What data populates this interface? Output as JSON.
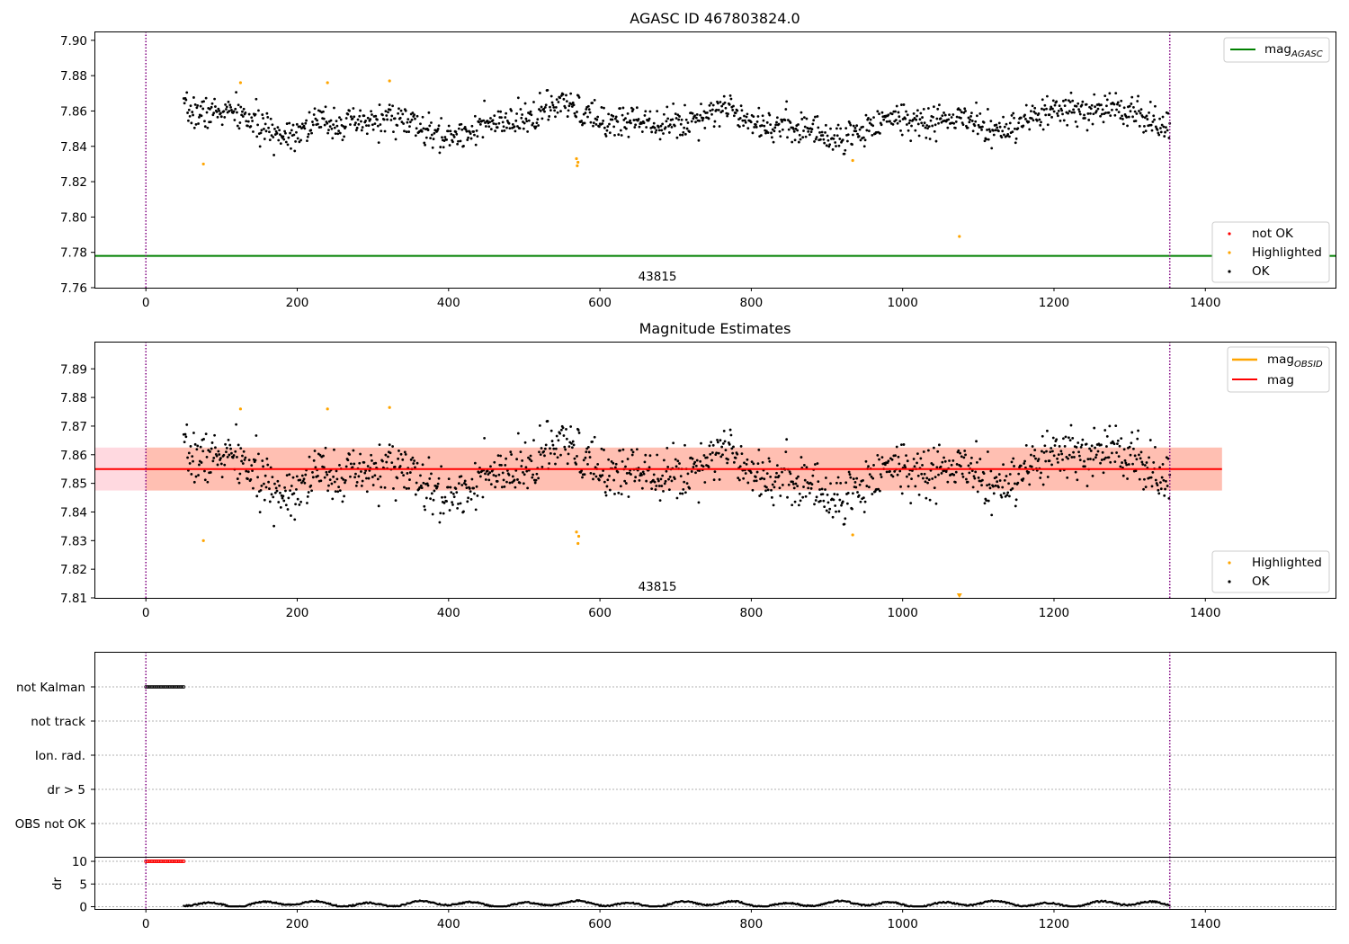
{
  "chart_data": [
    {
      "type": "scatter",
      "title": "AGASC ID 467803824.0",
      "xlim": [
        -68,
        1572
      ],
      "ylim": [
        7.76,
        7.905
      ],
      "xticks": [
        "0",
        "200",
        "400",
        "600",
        "800",
        "1000",
        "1200",
        "1400"
      ],
      "xtick_values": [
        0,
        200,
        400,
        600,
        800,
        1000,
        1200,
        1400
      ],
      "yticks": [
        "7.76",
        "7.78",
        "7.80",
        "7.82",
        "7.84",
        "7.86",
        "7.88",
        "7.90"
      ],
      "ytick_values": [
        7.76,
        7.78,
        7.8,
        7.82,
        7.84,
        7.86,
        7.88,
        7.9
      ],
      "obsid_boundaries": [
        0,
        1353
      ],
      "obsid_label": "43815",
      "obsid_label_x": 676,
      "mag_agasc": 7.778,
      "ok_series": {
        "x_start": 50,
        "x_end": 1353,
        "mean": 7.854,
        "amplitude": 0.008,
        "noise": 0.006,
        "count": 1280
      },
      "highlighted": [
        {
          "x": 76,
          "y": 7.83
        },
        {
          "x": 125,
          "y": 7.876
        },
        {
          "x": 240,
          "y": 7.876
        },
        {
          "x": 322,
          "y": 7.877
        },
        {
          "x": 569,
          "y": 7.833
        },
        {
          "x": 570,
          "y": 7.829
        },
        {
          "x": 571,
          "y": 7.831
        },
        {
          "x": 934,
          "y": 7.832
        },
        {
          "x": 1075,
          "y": 7.789
        }
      ],
      "legend_top": {
        "label": "mag",
        "sub": "AGASC",
        "color": "#008000"
      },
      "legend_bottom": [
        {
          "label": "not OK",
          "color": "#ff0000"
        },
        {
          "label": "Highlighted",
          "color": "#ffa500"
        },
        {
          "label": "OK",
          "color": "#000000"
        }
      ]
    },
    {
      "type": "scatter",
      "title": "Magnitude Estimates",
      "xlim": [
        -68,
        1572
      ],
      "ylim": [
        7.81,
        7.8995
      ],
      "xticks": [
        "0",
        "200",
        "400",
        "600",
        "800",
        "1000",
        "1200",
        "1400"
      ],
      "xtick_values": [
        0,
        200,
        400,
        600,
        800,
        1000,
        1200,
        1400
      ],
      "yticks": [
        "7.81",
        "7.82",
        "7.83",
        "7.84",
        "7.85",
        "7.86",
        "7.87",
        "7.88",
        "7.89"
      ],
      "ytick_values": [
        7.81,
        7.82,
        7.83,
        7.84,
        7.85,
        7.86,
        7.87,
        7.88,
        7.89
      ],
      "obsid_boundaries": [
        0,
        1353
      ],
      "obsid_label": "43815",
      "obsid_label_x": 676,
      "mag": 7.855,
      "mag_band": [
        7.8475,
        7.8625
      ],
      "mag_obsid": 7.855,
      "band_x": [
        -68,
        1422
      ],
      "obsid_band_x": [
        0,
        1422
      ],
      "highlighted": [
        {
          "x": 76,
          "y": 7.83
        },
        {
          "x": 125,
          "y": 7.876
        },
        {
          "x": 240,
          "y": 7.876
        },
        {
          "x": 322,
          "y": 7.8765
        },
        {
          "x": 569,
          "y": 7.833
        },
        {
          "x": 571,
          "y": 7.829
        },
        {
          "x": 572,
          "y": 7.8315
        },
        {
          "x": 934,
          "y": 7.832
        },
        {
          "x": 1075,
          "y": 7.811
        }
      ],
      "legend_top": [
        {
          "label": "mag",
          "sub": "OBSID",
          "color": "#ffa500"
        },
        {
          "label": "mag",
          "sub": "",
          "color": "#ff0000"
        }
      ],
      "legend_bottom": [
        {
          "label": "Highlighted",
          "color": "#ffa500"
        },
        {
          "label": "OK",
          "color": "#000000"
        }
      ]
    },
    {
      "type": "scatter",
      "title": "",
      "xlim": [
        -68,
        1572
      ],
      "categories": [
        "not Kalman",
        "not track",
        "Ion. rad.",
        "dr > 5",
        "OBS not OK"
      ],
      "flag_ranges": [
        {
          "category": "not Kalman",
          "x_start": 0,
          "x_end": 50
        }
      ],
      "obsid_boundaries": [
        0,
        1353
      ]
    },
    {
      "type": "scatter",
      "title": "",
      "ylabel": "dr",
      "xlim": [
        -68,
        1572
      ],
      "ylim": [
        -0.5,
        11
      ],
      "xticks": [
        "0",
        "200",
        "400",
        "600",
        "800",
        "1000",
        "1200",
        "1400"
      ],
      "xtick_values": [
        0,
        200,
        400,
        600,
        800,
        1000,
        1200,
        1400
      ],
      "yticks": [
        "0",
        "5",
        "10"
      ],
      "ytick_values": [
        0,
        5,
        10
      ],
      "obsid_boundaries": [
        0,
        1353
      ],
      "red_points": {
        "x_start": 0,
        "x_end": 50,
        "y": 10
      },
      "dr_series": {
        "x_start": 50,
        "x_end": 1353,
        "mean": 0.6
      }
    }
  ],
  "colors": {
    "ok": "#000000",
    "highlighted": "#ffa500",
    "not_ok": "#ff0000",
    "obsid_line": "#800080",
    "band_fill": "#ffc0cb",
    "band_fill_obsid": "#ffa07a"
  }
}
